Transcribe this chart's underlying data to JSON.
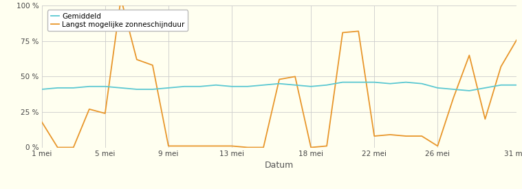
{
  "days": [
    1,
    2,
    3,
    4,
    5,
    6,
    7,
    8,
    9,
    10,
    11,
    12,
    13,
    14,
    15,
    16,
    17,
    18,
    19,
    20,
    21,
    22,
    23,
    24,
    25,
    26,
    27,
    28,
    29,
    30,
    31
  ],
  "gemiddeld": [
    41,
    42,
    42,
    43,
    43,
    42,
    41,
    41,
    42,
    43,
    43,
    44,
    43,
    43,
    44,
    45,
    44,
    43,
    44,
    46,
    46,
    46,
    45,
    46,
    45,
    42,
    41,
    40,
    42,
    44,
    44
  ],
  "langst": [
    18,
    0,
    0,
    27,
    24,
    105,
    62,
    58,
    1,
    1,
    1,
    1,
    1,
    0,
    0,
    48,
    50,
    0,
    1,
    81,
    82,
    8,
    9,
    8,
    8,
    1,
    35,
    65,
    20,
    57,
    76
  ],
  "xtick_labels": [
    "1 mei",
    "5 mei",
    "9 mei",
    "13 mei",
    "18 mei",
    "22 mei",
    "26 mei",
    "31 mei"
  ],
  "xtick_positions": [
    1,
    5,
    9,
    13,
    18,
    22,
    26,
    31
  ],
  "ytick_labels": [
    "0 %",
    "25 %",
    "50 %",
    "75 %",
    "100 %"
  ],
  "ytick_positions": [
    0,
    25,
    50,
    75,
    100
  ],
  "xlabel": "Datum",
  "gemiddeld_color": "#5bc8d2",
  "langst_color": "#e8962a",
  "background_color": "#fffff0",
  "grid_color": "#cccccc",
  "legend_gemiddeld": "Gemiddeld",
  "legend_langst": "Langst mogelijke zonneschijnduur",
  "ylim": [
    0,
    100
  ],
  "xlim": [
    1,
    31
  ]
}
